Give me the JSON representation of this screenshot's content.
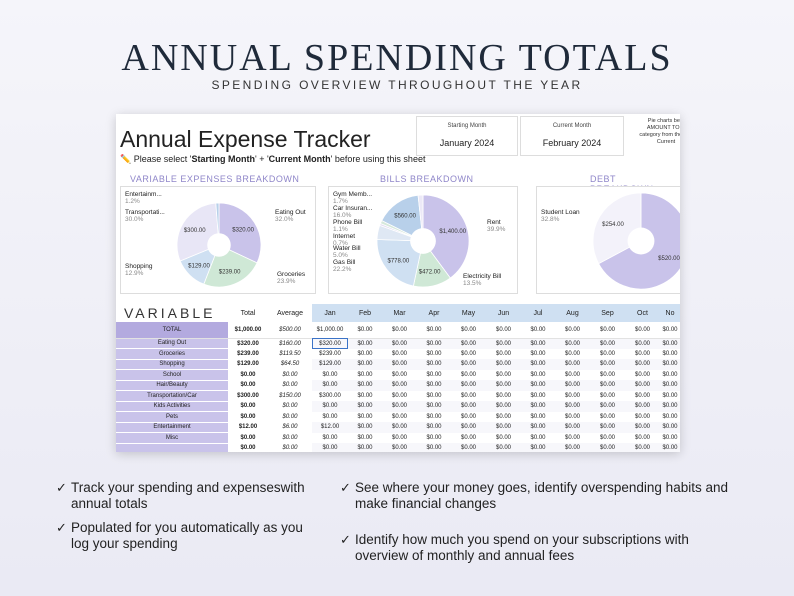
{
  "banner": {
    "title": "ANNUAL SPENDING TOTALS",
    "subtitle": "SPENDING OVERVIEW THROUGHOUT THE YEAR"
  },
  "sheet": {
    "title": "Annual Expense Tracker",
    "note_prefix": "✏️ Please select '",
    "note_start": "Starting Month",
    "note_mid": "' + '",
    "note_current": "Current Month",
    "note_suffix": "' before using this sheet",
    "starting_month_label": "Starting Month",
    "starting_month_value": "January  2024",
    "current_month_label": "Current Month",
    "current_month_value": "February  2024",
    "pie_note": "Pie charts belo AMOUNT TO D category from the s to Current"
  },
  "charts": {
    "variable_title": "VARIABLE EXPENSES BREAKDOWN",
    "bills_title": "BILLS BREAKDOWN",
    "debt_title": "DEBT BREAKDOWN"
  },
  "chart_data": [
    {
      "type": "pie",
      "title": "VARIABLE EXPENSES BREAKDOWN",
      "slices": [
        {
          "label": "Eating Out",
          "value": 320,
          "display": "$320.00",
          "pct": "32.0%",
          "color": "#c9c3ea"
        },
        {
          "label": "Groceries",
          "value": 239,
          "display": "$239.00",
          "pct": "23.9%",
          "color": "#cfe8d6"
        },
        {
          "label": "Shopping",
          "value": 129,
          "display": "$129.00",
          "pct": "12.9%",
          "color": "#cfe0f2"
        },
        {
          "label": "Transportati...",
          "value": 300,
          "display": "$300.00",
          "pct": "30.0%",
          "color": "#e8e6f6"
        },
        {
          "label": "Entertainm...",
          "value": 12,
          "display": "",
          "pct": "1.2%",
          "color": "#b8d0ea"
        }
      ]
    },
    {
      "type": "pie",
      "title": "BILLS BREAKDOWN",
      "slices": [
        {
          "label": "Rent",
          "value": 1400,
          "display": "$1,400.00",
          "pct": "39.9%",
          "color": "#c9c3ea"
        },
        {
          "label": "Electricity Bill",
          "value": 472,
          "display": "$472.00",
          "pct": "13.5%",
          "color": "#cfe8d6"
        },
        {
          "label": "Gas Bill",
          "value": 778,
          "display": "$778.00",
          "pct": "22.2%",
          "color": "#cfe0f2"
        },
        {
          "label": "Water Bill",
          "value": 175,
          "display": "",
          "pct": "5.0%",
          "color": "#dfe8f4"
        },
        {
          "label": "Internet",
          "value": 25,
          "display": "",
          "pct": "0.7%",
          "color": "#e0dcf2"
        },
        {
          "label": "Phone Bill",
          "value": 39,
          "display": "",
          "pct": "1.1%",
          "color": "#d6e8dc"
        },
        {
          "label": "Car Insuran...",
          "value": 560,
          "display": "$560.00",
          "pct": "16.0%",
          "color": "#b8d0ea"
        },
        {
          "label": "Gym Memb...",
          "value": 60,
          "display": "",
          "pct": "1.7%",
          "color": "#ece9f7"
        }
      ]
    },
    {
      "type": "pie",
      "title": "DEBT BREAKDOWN",
      "slices": [
        {
          "label": "Debt B",
          "value": 520,
          "display": "$520.00",
          "pct": "",
          "color": "#c9c3ea"
        },
        {
          "label": "Student Loan",
          "value": 254,
          "display": "$254.00",
          "pct": "32.8%",
          "color": "#f3f2fa"
        }
      ]
    }
  ],
  "table": {
    "heading": "VARIABLE",
    "col_total": "Total",
    "col_average": "Average",
    "months": [
      "Jan",
      "Feb",
      "Mar",
      "Apr",
      "May",
      "Jun",
      "Jul",
      "Aug",
      "Sep",
      "Oct",
      "No"
    ],
    "rows": [
      {
        "cat": "TOTAL",
        "total": "$1,000.00",
        "avg": "$500.00",
        "jan": "$1,000.00"
      },
      {
        "cat": "Eating Out",
        "total": "$320.00",
        "avg": "$160.00",
        "jan": "$320.00"
      },
      {
        "cat": "Groceries",
        "total": "$239.00",
        "avg": "$119.50",
        "jan": "$239.00"
      },
      {
        "cat": "Shopping",
        "total": "$129.00",
        "avg": "$64.50",
        "jan": "$129.00"
      },
      {
        "cat": "School",
        "total": "$0.00",
        "avg": "$0.00",
        "jan": "$0.00"
      },
      {
        "cat": "Hair/Beauty",
        "total": "$0.00",
        "avg": "$0.00",
        "jan": "$0.00"
      },
      {
        "cat": "Transportation/Car",
        "total": "$300.00",
        "avg": "$150.00",
        "jan": "$300.00"
      },
      {
        "cat": "Kids Activities",
        "total": "$0.00",
        "avg": "$0.00",
        "jan": "$0.00"
      },
      {
        "cat": "Pets",
        "total": "$0.00",
        "avg": "$0.00",
        "jan": "$0.00"
      },
      {
        "cat": "Entertainment",
        "total": "$12.00",
        "avg": "$6.00",
        "jan": "$12.00"
      },
      {
        "cat": "Misc",
        "total": "$0.00",
        "avg": "$0.00",
        "jan": "$0.00"
      },
      {
        "cat": "",
        "total": "$0.00",
        "avg": "$0.00",
        "jan": "$0.00"
      }
    ],
    "other_month_value": "$0.00"
  },
  "features": {
    "left_1": "Track your spending and expenseswith annual totals",
    "left_2": "Populated for you automatically as you log your spending",
    "right_1": "See where your money goes, identify overspending habits and make financial changes",
    "right_2": "Identify how much you spend on your subscriptions with overview of monthly and annual fees",
    "check": "✓"
  }
}
